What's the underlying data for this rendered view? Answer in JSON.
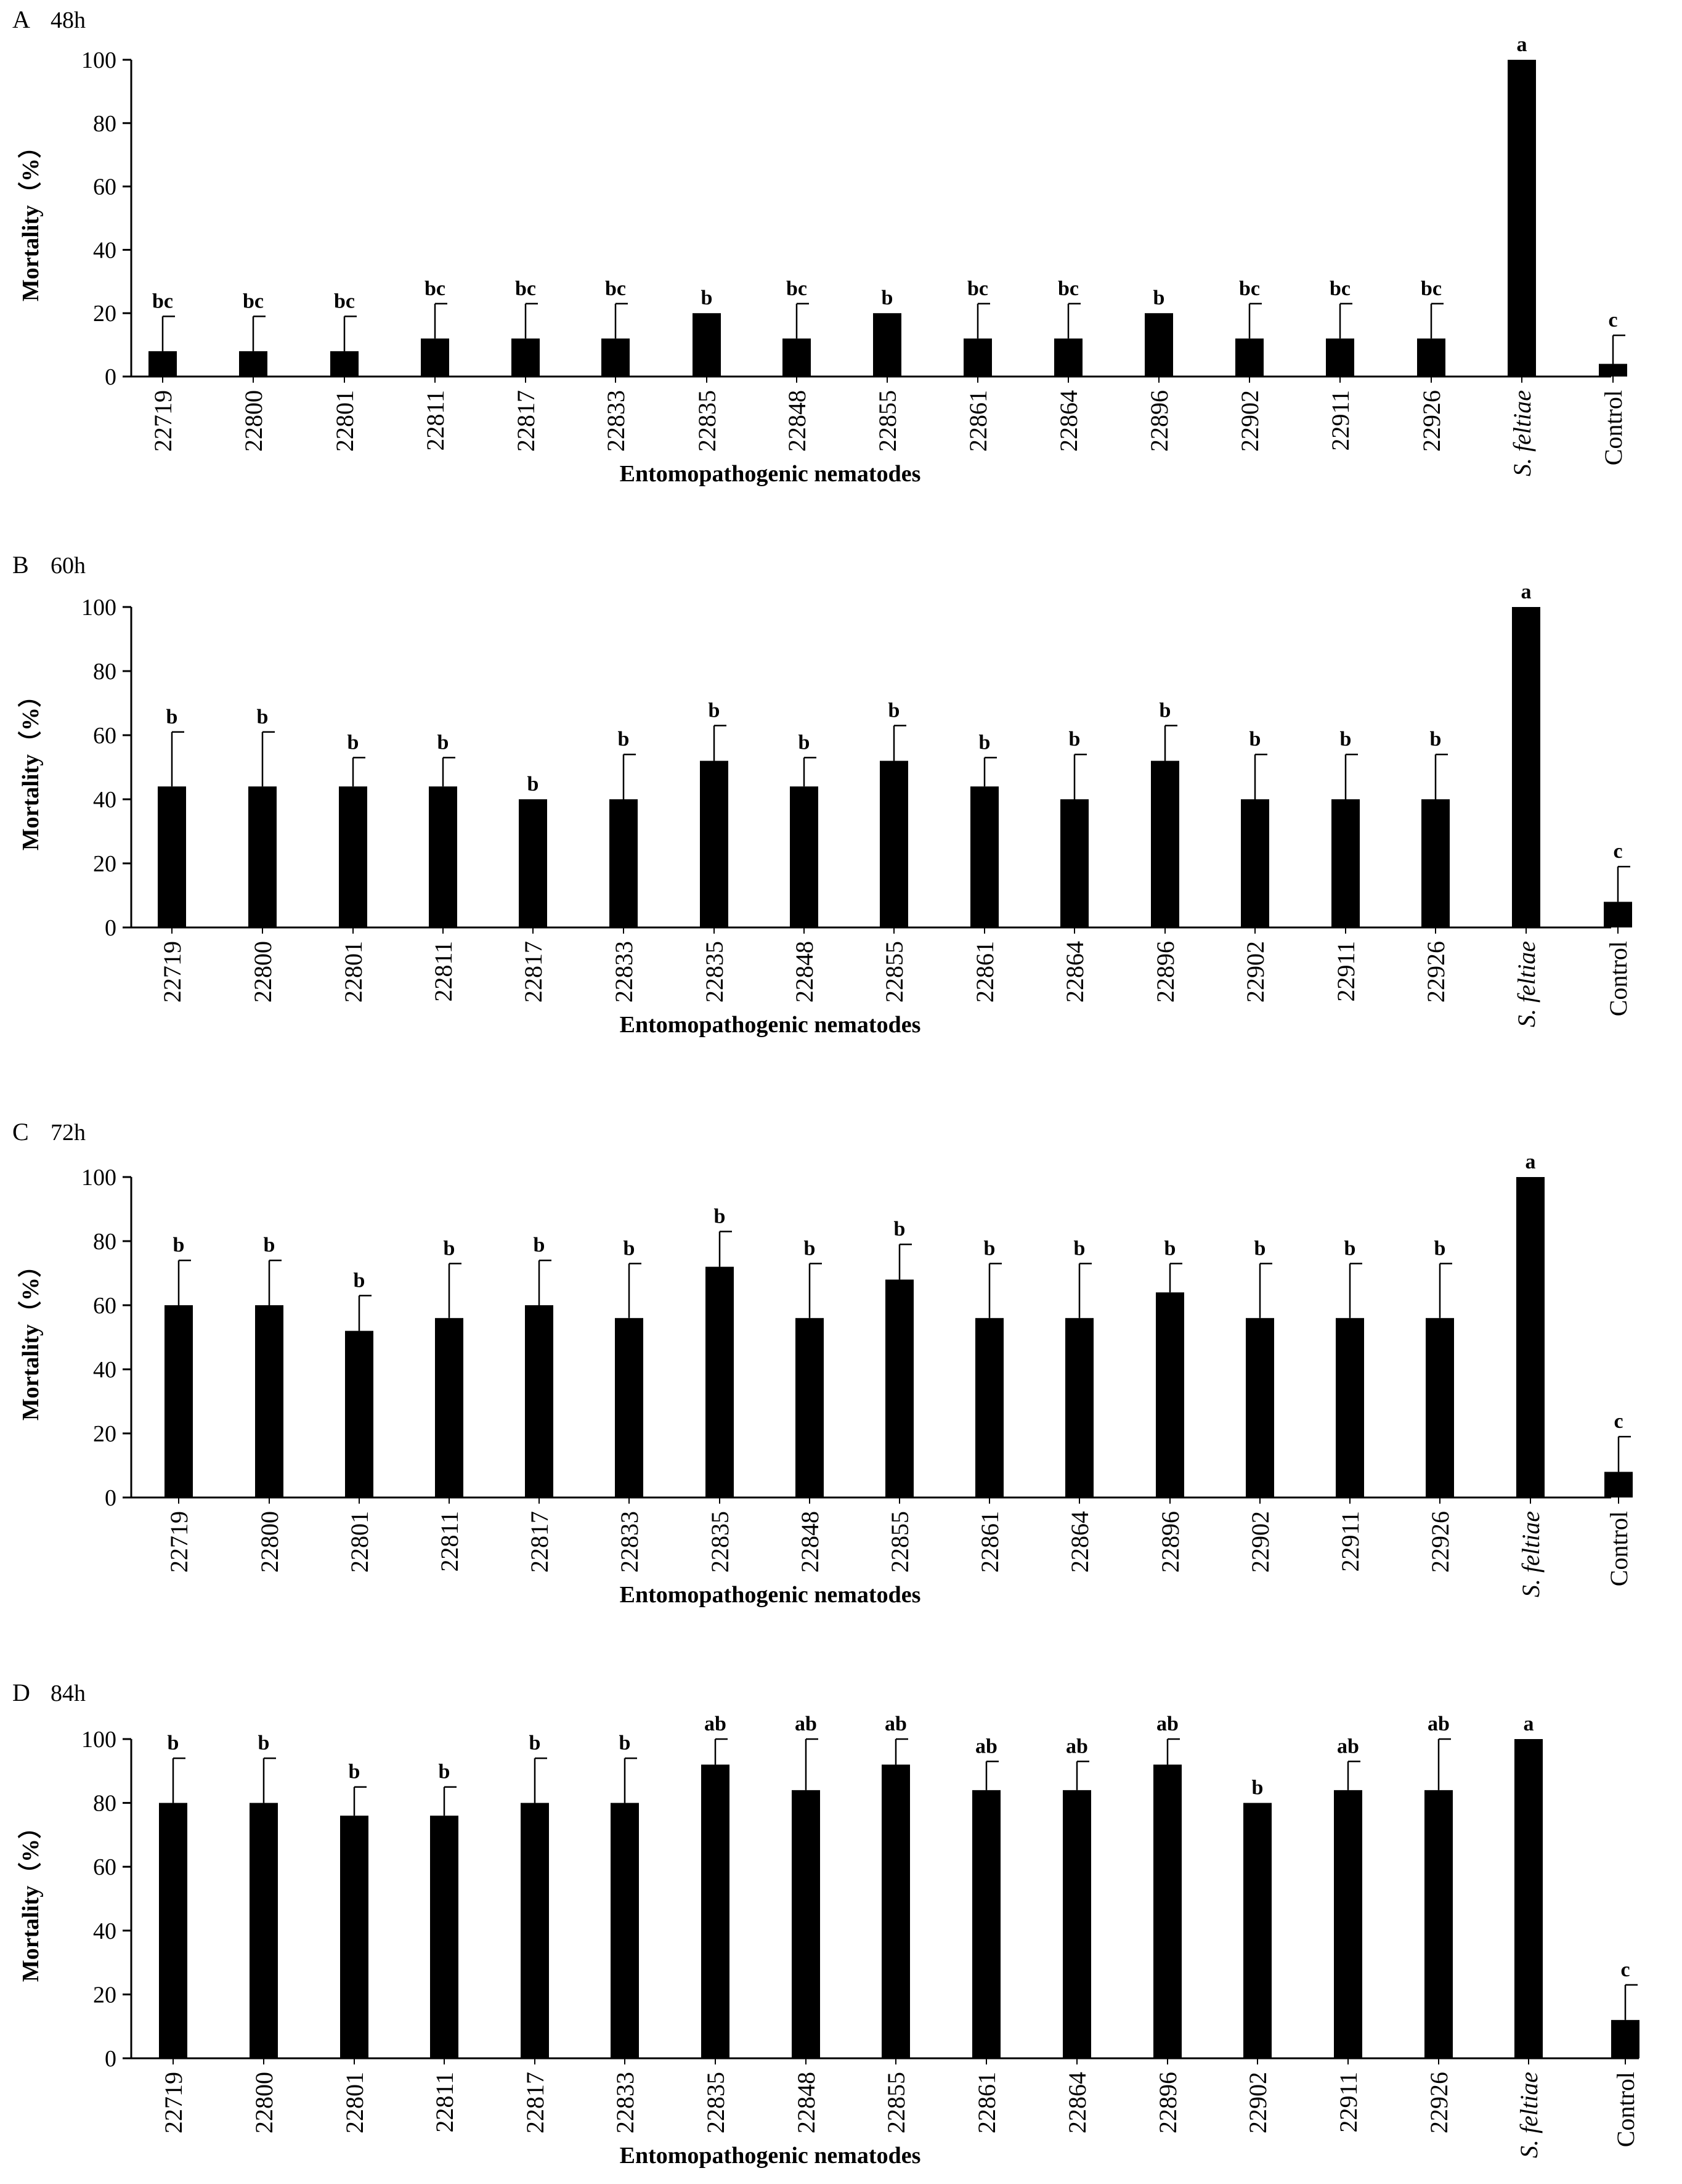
{
  "chart_data": [
    {
      "type": "bar",
      "panel": "A",
      "time": "48h",
      "xlabel": "Entomopathogenic nematodes",
      "ylabel": "Mortality（%）",
      "ylim": [
        0,
        100
      ],
      "yticks": [
        0,
        20,
        40,
        60,
        80,
        100
      ],
      "categories": [
        "22719",
        "22800",
        "22801",
        "22811",
        "22817",
        "22833",
        "22835",
        "22848",
        "22855",
        "22861",
        "22864",
        "22896",
        "22902",
        "22911",
        "22926",
        "S. feltiae",
        "Control"
      ],
      "values": [
        8,
        8,
        8,
        12,
        12,
        12,
        20,
        12,
        20,
        12,
        12,
        20,
        12,
        12,
        12,
        100,
        4
      ],
      "errors": [
        11,
        11,
        11,
        11,
        11,
        11,
        0,
        11,
        0,
        11,
        11,
        0,
        11,
        11,
        11,
        0,
        9
      ],
      "letters": [
        "bc",
        "bc",
        "bc",
        "bc",
        "bc",
        "bc",
        "b",
        "bc",
        "b",
        "bc",
        "bc",
        "b",
        "bc",
        "bc",
        "bc",
        "a",
        "c"
      ],
      "grid": false,
      "bar_color": "#000000"
    },
    {
      "type": "bar",
      "panel": "B",
      "time": "60h",
      "xlabel": "Entomopathogenic nematodes",
      "ylabel": "Mortality（%）",
      "ylim": [
        0,
        100
      ],
      "yticks": [
        0,
        20,
        40,
        60,
        80,
        100
      ],
      "categories": [
        "22719",
        "22800",
        "22801",
        "22811",
        "22817",
        "22833",
        "22835",
        "22848",
        "22855",
        "22861",
        "22864",
        "22896",
        "22902",
        "22911",
        "22926",
        "S. feltiae",
        "Control"
      ],
      "values": [
        44,
        44,
        44,
        44,
        40,
        40,
        52,
        44,
        52,
        44,
        40,
        52,
        40,
        40,
        40,
        100,
        8
      ],
      "errors": [
        17,
        17,
        9,
        9,
        0,
        14,
        11,
        9,
        11,
        9,
        14,
        11,
        14,
        14,
        14,
        0,
        11
      ],
      "letters": [
        "b",
        "b",
        "b",
        "b",
        "b",
        "b",
        "b",
        "b",
        "b",
        "b",
        "b",
        "b",
        "b",
        "b",
        "b",
        "a",
        "c"
      ],
      "grid": false,
      "bar_color": "#000000"
    },
    {
      "type": "bar",
      "panel": "C",
      "time": "72h",
      "xlabel": "Entomopathogenic nematodes",
      "ylabel": "Mortality（%）",
      "ylim": [
        0,
        100
      ],
      "yticks": [
        0,
        20,
        40,
        60,
        80,
        100
      ],
      "categories": [
        "22719",
        "22800",
        "22801",
        "22811",
        "22817",
        "22833",
        "22835",
        "22848",
        "22855",
        "22861",
        "22864",
        "22896",
        "22902",
        "22911",
        "22926",
        "S. feltiae",
        "Control"
      ],
      "values": [
        60,
        60,
        52,
        56,
        60,
        56,
        72,
        56,
        68,
        56,
        56,
        64,
        56,
        56,
        56,
        100,
        8
      ],
      "errors": [
        14,
        14,
        11,
        17,
        14,
        17,
        11,
        17,
        11,
        17,
        17,
        9,
        17,
        17,
        17,
        0,
        11
      ],
      "letters": [
        "b",
        "b",
        "b",
        "b",
        "b",
        "b",
        "b",
        "b",
        "b",
        "b",
        "b",
        "b",
        "b",
        "b",
        "b",
        "a",
        "c"
      ],
      "grid": false,
      "bar_color": "#000000"
    },
    {
      "type": "bar",
      "panel": "D",
      "time": "84h",
      "xlabel": "Entomopathogenic nematodes",
      "ylabel": "Mortality（%）",
      "ylim": [
        0,
        100
      ],
      "yticks": [
        0,
        20,
        40,
        60,
        80,
        100
      ],
      "categories": [
        "22719",
        "22800",
        "22801",
        "22811",
        "22817",
        "22833",
        "22835",
        "22848",
        "22855",
        "22861",
        "22864",
        "22896",
        "22902",
        "22911",
        "22926",
        "S. feltiae",
        "Control"
      ],
      "values": [
        80,
        80,
        76,
        76,
        80,
        80,
        92,
        84,
        92,
        84,
        84,
        92,
        80,
        84,
        84,
        100,
        12
      ],
      "errors": [
        14,
        14,
        9,
        9,
        14,
        14,
        8,
        16,
        8,
        9,
        9,
        8,
        0,
        9,
        16,
        0,
        11
      ],
      "letters": [
        "b",
        "b",
        "b",
        "b",
        "b",
        "b",
        "ab",
        "ab",
        "ab",
        "ab",
        "ab",
        "ab",
        "b",
        "ab",
        "ab",
        "a",
        "c"
      ],
      "grid": false,
      "bar_color": "#000000"
    }
  ]
}
